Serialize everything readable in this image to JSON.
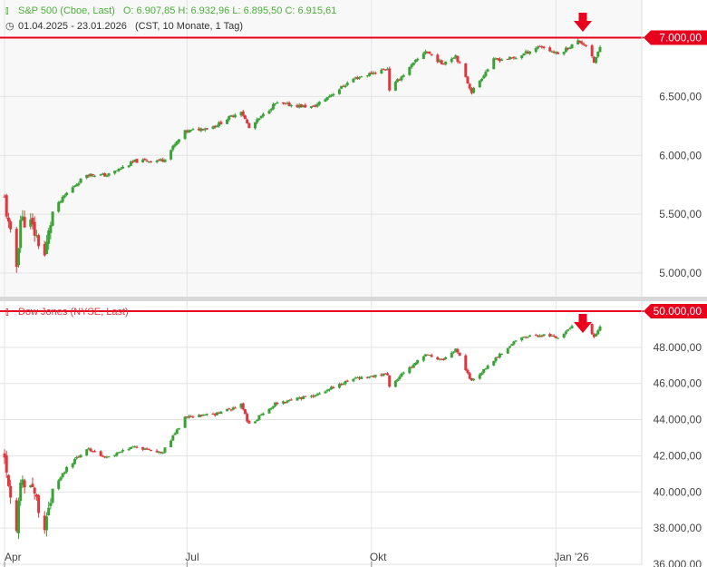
{
  "colors": {
    "up": "#3aa335",
    "down": "#e0363d",
    "resistance": "#e8001c",
    "grid": "#e3e3e3",
    "panel_bg": "#f8f8f8"
  },
  "panel_top": {
    "legend_icon": "candlestick-icon",
    "name": "S&P 500 (Cboe, Last)",
    "ohlc": "O: 6.907,85   H: 6.932,96   L: 6.895,50   C: 6.915,61",
    "range_icon": "clock-icon",
    "range": "01.04.2025 - 23.01.2026",
    "meta": "(CST, 10 Monate, 1 Tag)"
  },
  "panel_bottom": {
    "legend_icon": "candlestick-icon",
    "name": "Dow Jones (NYSE, Last)"
  },
  "chart_data": [
    {
      "type": "candlestick",
      "series": [
        {
          "name": "S&P 500 (Cboe, Last)"
        }
      ],
      "x_range": [
        "2025-04-01",
        "2026-01-23"
      ],
      "x_ticks": [
        "Apr",
        "Jul",
        "Okt",
        "Jan '26"
      ],
      "y_ticks": [
        "5.000,00",
        "5.500,00",
        "6.000,00",
        "6.500,00",
        "7.000,00"
      ],
      "ylim": [
        4800,
        7320
      ],
      "resistance": {
        "value": 7000,
        "label": "7.000,00"
      },
      "marker": "arrow-down-icon",
      "close_path": [
        [
          "2025-04-01",
          5630
        ],
        [
          "2025-04-03",
          5400
        ],
        [
          "2025-04-07",
          5060
        ],
        [
          "2025-04-09",
          5460
        ],
        [
          "2025-04-14",
          5420
        ],
        [
          "2025-04-21",
          5150
        ],
        [
          "2025-04-25",
          5520
        ],
        [
          "2025-05-02",
          5680
        ],
        [
          "2025-05-12",
          5840
        ],
        [
          "2025-05-22",
          5830
        ],
        [
          "2025-06-05",
          5950
        ],
        [
          "2025-06-19",
          5960
        ],
        [
          "2025-06-30",
          6200
        ],
        [
          "2025-07-15",
          6250
        ],
        [
          "2025-07-28",
          6380
        ],
        [
          "2025-08-01",
          6230
        ],
        [
          "2025-08-14",
          6440
        ],
        [
          "2025-09-02",
          6410
        ],
        [
          "2025-09-22",
          6650
        ],
        [
          "2025-10-09",
          6740
        ],
        [
          "2025-10-10",
          6560
        ],
        [
          "2025-10-28",
          6890
        ],
        [
          "2025-11-05",
          6780
        ],
        [
          "2025-11-12",
          6850
        ],
        [
          "2025-11-20",
          6540
        ],
        [
          "2025-12-01",
          6810
        ],
        [
          "2025-12-12",
          6830
        ],
        [
          "2025-12-24",
          6930
        ],
        [
          "2026-01-02",
          6860
        ],
        [
          "2026-01-12",
          6970
        ],
        [
          "2026-01-16",
          6940
        ],
        [
          "2026-01-20",
          6790
        ],
        [
          "2026-01-23",
          6915
        ]
      ]
    },
    {
      "type": "candlestick",
      "series": [
        {
          "name": "Dow Jones (NYSE, Last)"
        }
      ],
      "x_range": [
        "2025-04-01",
        "2026-01-23"
      ],
      "x_ticks": [
        "Apr",
        "Jul",
        "Okt",
        "Jan '26"
      ],
      "y_ticks": [
        "36.000,00",
        "38.000,00",
        "40.000,00",
        "42.000,00",
        "44.000,00",
        "46.000,00",
        "48.000,00",
        "50.000,00"
      ],
      "ylim": [
        35950,
        50550
      ],
      "resistance": {
        "value": 50000,
        "label": "50.000,00"
      },
      "marker": "arrow-down-icon",
      "close_path": [
        [
          "2025-04-01",
          42000
        ],
        [
          "2025-04-03",
          40500
        ],
        [
          "2025-04-07",
          37900
        ],
        [
          "2025-04-09",
          40600
        ],
        [
          "2025-04-14",
          40500
        ],
        [
          "2025-04-21",
          38200
        ],
        [
          "2025-04-25",
          40100
        ],
        [
          "2025-05-02",
          41300
        ],
        [
          "2025-05-12",
          42400
        ],
        [
          "2025-05-22",
          41900
        ],
        [
          "2025-06-05",
          42500
        ],
        [
          "2025-06-19",
          42200
        ],
        [
          "2025-06-30",
          44100
        ],
        [
          "2025-07-15",
          44300
        ],
        [
          "2025-07-28",
          44800
        ],
        [
          "2025-08-01",
          43700
        ],
        [
          "2025-08-14",
          44900
        ],
        [
          "2025-09-02",
          45300
        ],
        [
          "2025-09-22",
          46300
        ],
        [
          "2025-10-09",
          46500
        ],
        [
          "2025-10-10",
          45900
        ],
        [
          "2025-10-28",
          47600
        ],
        [
          "2025-11-05",
          47300
        ],
        [
          "2025-11-12",
          47900
        ],
        [
          "2025-11-20",
          46100
        ],
        [
          "2025-12-01",
          47300
        ],
        [
          "2025-12-12",
          48400
        ],
        [
          "2025-12-24",
          48700
        ],
        [
          "2026-01-02",
          48500
        ],
        [
          "2026-01-12",
          49400
        ],
        [
          "2026-01-16",
          49300
        ],
        [
          "2026-01-20",
          48500
        ],
        [
          "2026-01-23",
          49100
        ]
      ]
    }
  ]
}
